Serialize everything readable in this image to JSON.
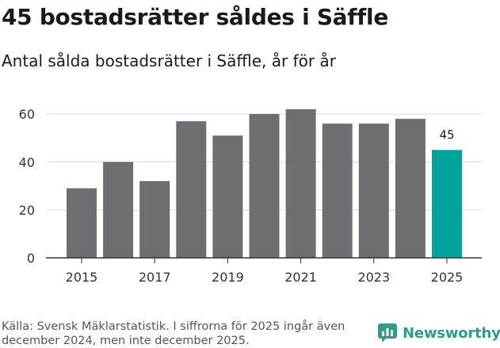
{
  "title": "45 bostadsrätter såldes i Säffle",
  "subtitle": "Antal sålda bostadsrätter i Säffle, år för år",
  "source": "Källa: Svensk Mäklarstatistik. I siffrorna för 2025 ingår även december 2024, men inte december 2025.",
  "brand": {
    "name": "Newsworthy",
    "icon": "newsworthy-logo-icon"
  },
  "colors": {
    "bar": "#6e6d72",
    "highlight": "#00a39b",
    "grid": "#d9d9d9",
    "axis": "#333333",
    "brand": "#2e9b8d"
  },
  "chart_data": {
    "type": "bar",
    "categories": [
      "2015",
      "2016",
      "2017",
      "2018",
      "2019",
      "2020",
      "2021",
      "2022",
      "2023",
      "2024",
      "2025"
    ],
    "values": [
      29,
      40,
      32,
      57,
      51,
      60,
      62,
      56,
      56,
      58,
      45
    ],
    "highlight_index": 10,
    "x_tick_labels": [
      "2015",
      "",
      "2017",
      "",
      "2019",
      "",
      "2021",
      "",
      "2023",
      "",
      "2025"
    ],
    "y_ticks": [
      0,
      20,
      40,
      60
    ],
    "ylim": [
      0,
      65
    ],
    "data_labels": [
      {
        "index": 10,
        "text": "45"
      }
    ],
    "title": "45 bostadsrätter såldes i Säffle",
    "xlabel": "",
    "ylabel": "",
    "grid": true
  }
}
